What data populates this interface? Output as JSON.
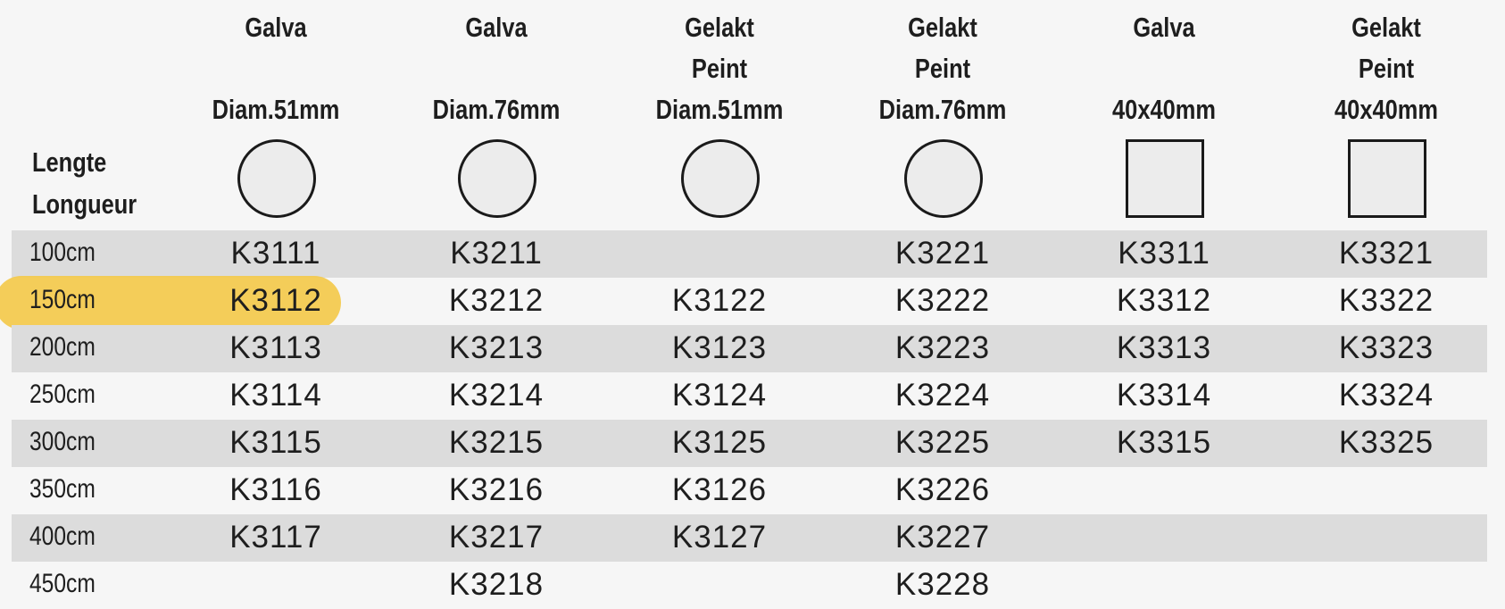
{
  "length_header": [
    "Lengte",
    "Longueur"
  ],
  "columns": [
    {
      "lines": [
        "Galva",
        "",
        "Diam.51mm"
      ],
      "shape": "circle"
    },
    {
      "lines": [
        "Galva",
        "",
        "Diam.76mm"
      ],
      "shape": "circle"
    },
    {
      "lines": [
        "Gelakt",
        "Peint",
        "Diam.51mm"
      ],
      "shape": "circle"
    },
    {
      "lines": [
        "Gelakt",
        "Peint",
        "Diam.76mm"
      ],
      "shape": "circle"
    },
    {
      "lines": [
        "Galva",
        "",
        "40x40mm"
      ],
      "shape": "square"
    },
    {
      "lines": [
        "Gelakt",
        "Peint",
        "40x40mm"
      ],
      "shape": "square"
    }
  ],
  "rows": [
    {
      "length": "100cm",
      "codes": [
        "K3111",
        "K3211",
        "",
        "K3221",
        "K3311",
        "K3321"
      ]
    },
    {
      "length": "150cm",
      "codes": [
        "K3112",
        "K3212",
        "K3122",
        "K3222",
        "K3312",
        "K3322"
      ],
      "highlighted": true
    },
    {
      "length": "200cm",
      "codes": [
        "K3113",
        "K3213",
        "K3123",
        "K3223",
        "K3313",
        "K3323"
      ]
    },
    {
      "length": "250cm",
      "codes": [
        "K3114",
        "K3214",
        "K3124",
        "K3224",
        "K3314",
        "K3324"
      ]
    },
    {
      "length": "300cm",
      "codes": [
        "K3115",
        "K3215",
        "K3125",
        "K3225",
        "K3315",
        "K3325"
      ]
    },
    {
      "length": "350cm",
      "codes": [
        "K3116",
        "K3216",
        "K3126",
        "K3226",
        "",
        ""
      ]
    },
    {
      "length": "400cm",
      "codes": [
        "K3117",
        "K3217",
        "K3127",
        "K3227",
        "",
        ""
      ]
    },
    {
      "length": "450cm",
      "codes": [
        "",
        "K3218",
        "",
        "K3228",
        "",
        ""
      ]
    }
  ],
  "colors": {
    "highlight": "#f3c94b",
    "row_shade": "#dcdcdc",
    "background": "#f6f6f6"
  }
}
